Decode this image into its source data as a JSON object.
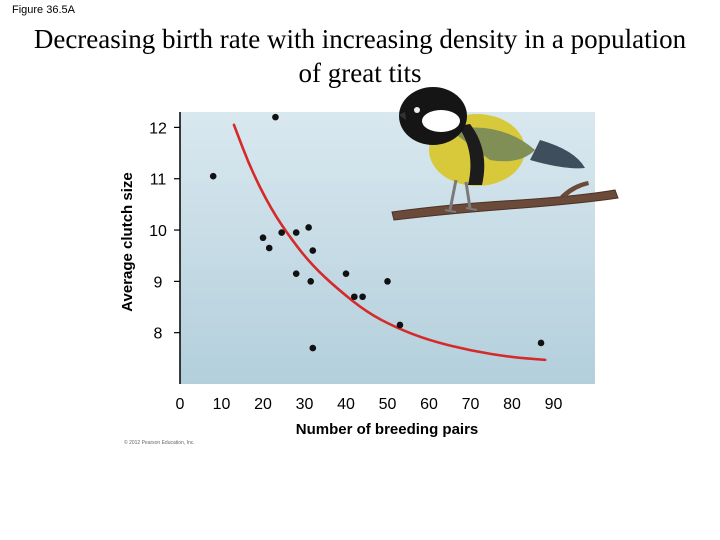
{
  "figure_label": "Figure 36.5A",
  "title_lines": [
    "Decreasing birth rate with increasing density in a population",
    "of great tits"
  ],
  "copyright": "© 2012 Pearson Education, Inc.",
  "chart_data": {
    "type": "scatter",
    "xlabel": "Number of breeding pairs",
    "ylabel": "Average clutch size",
    "xlim": [
      0,
      100
    ],
    "ylim": [
      7.0,
      12.3
    ],
    "x_ticks": [
      0,
      10,
      20,
      30,
      40,
      50,
      60,
      70,
      80,
      90
    ],
    "y_ticks": [
      8,
      9,
      10,
      11,
      12
    ],
    "grid": false,
    "background": "#c6dde8",
    "point_color": "#111111",
    "curve_color": "#d42a2a",
    "points": [
      {
        "x": 23,
        "y": 12.2
      },
      {
        "x": 8,
        "y": 11.05
      },
      {
        "x": 20,
        "y": 9.85
      },
      {
        "x": 21.5,
        "y": 9.65
      },
      {
        "x": 24.5,
        "y": 9.95
      },
      {
        "x": 28,
        "y": 9.95
      },
      {
        "x": 31,
        "y": 10.05
      },
      {
        "x": 32,
        "y": 9.6
      },
      {
        "x": 28,
        "y": 9.15
      },
      {
        "x": 31.5,
        "y": 9.0
      },
      {
        "x": 40,
        "y": 9.15
      },
      {
        "x": 42,
        "y": 8.7
      },
      {
        "x": 44,
        "y": 8.7
      },
      {
        "x": 50,
        "y": 9.0
      },
      {
        "x": 53,
        "y": 8.15
      },
      {
        "x": 32,
        "y": 7.7
      },
      {
        "x": 87,
        "y": 7.8
      }
    ],
    "trend_curve": [
      {
        "x": 13,
        "y": 12.05
      },
      {
        "x": 17,
        "y": 11.2
      },
      {
        "x": 22,
        "y": 10.4
      },
      {
        "x": 27,
        "y": 9.8
      },
      {
        "x": 32,
        "y": 9.3
      },
      {
        "x": 38,
        "y": 8.85
      },
      {
        "x": 45,
        "y": 8.4
      },
      {
        "x": 52,
        "y": 8.1
      },
      {
        "x": 60,
        "y": 7.85
      },
      {
        "x": 70,
        "y": 7.65
      },
      {
        "x": 80,
        "y": 7.52
      },
      {
        "x": 88,
        "y": 7.47
      }
    ],
    "illustration": "great-tit-on-branch"
  }
}
